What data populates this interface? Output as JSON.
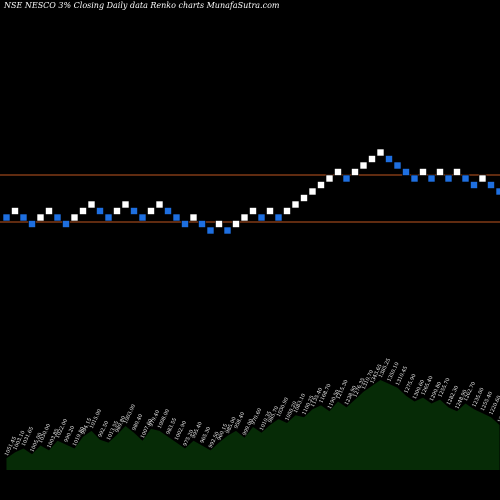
{
  "header": {
    "title": "NSE NESCO 3% Closing Daily data  Renko  charts MunafaSutra.com"
  },
  "colors": {
    "background": "#000000",
    "up_brick": "#ffffff",
    "down_brick": "#1e6fe0",
    "brick_border": "#000000",
    "level_line": "#c0561f",
    "volume_fill": "#062b06"
  },
  "chart_data": {
    "type": "renko",
    "title": "NSE NESCO 3% Closing Daily data  Renko  charts MunafaSutra.com",
    "brick_size_pct": 3,
    "levels": [
      175,
      222
    ],
    "bricks": [
      {
        "dir": "down",
        "level": 0
      },
      {
        "dir": "up",
        "level": 1
      },
      {
        "dir": "down",
        "level": 0
      },
      {
        "dir": "down",
        "level": -1
      },
      {
        "dir": "up",
        "level": 0
      },
      {
        "dir": "up",
        "level": 1
      },
      {
        "dir": "down",
        "level": 0
      },
      {
        "dir": "down",
        "level": -1
      },
      {
        "dir": "up",
        "level": 0
      },
      {
        "dir": "up",
        "level": 1
      },
      {
        "dir": "up",
        "level": 2
      },
      {
        "dir": "down",
        "level": 1
      },
      {
        "dir": "down",
        "level": 0
      },
      {
        "dir": "up",
        "level": 1
      },
      {
        "dir": "up",
        "level": 2
      },
      {
        "dir": "down",
        "level": 1
      },
      {
        "dir": "down",
        "level": 0
      },
      {
        "dir": "up",
        "level": 1
      },
      {
        "dir": "up",
        "level": 2
      },
      {
        "dir": "down",
        "level": 1
      },
      {
        "dir": "down",
        "level": 0
      },
      {
        "dir": "down",
        "level": -1
      },
      {
        "dir": "up",
        "level": 0
      },
      {
        "dir": "down",
        "level": -1
      },
      {
        "dir": "down",
        "level": -2
      },
      {
        "dir": "up",
        "level": -1
      },
      {
        "dir": "down",
        "level": -2
      },
      {
        "dir": "up",
        "level": -1
      },
      {
        "dir": "up",
        "level": 0
      },
      {
        "dir": "up",
        "level": 1
      },
      {
        "dir": "down",
        "level": 0
      },
      {
        "dir": "up",
        "level": 1
      },
      {
        "dir": "down",
        "level": 0
      },
      {
        "dir": "up",
        "level": 1
      },
      {
        "dir": "up",
        "level": 2
      },
      {
        "dir": "up",
        "level": 3
      },
      {
        "dir": "up",
        "level": 4
      },
      {
        "dir": "up",
        "level": 5
      },
      {
        "dir": "up",
        "level": 6
      },
      {
        "dir": "up",
        "level": 7
      },
      {
        "dir": "down",
        "level": 6
      },
      {
        "dir": "up",
        "level": 7
      },
      {
        "dir": "up",
        "level": 8
      },
      {
        "dir": "up",
        "level": 9
      },
      {
        "dir": "up",
        "level": 10
      },
      {
        "dir": "down",
        "level": 9
      },
      {
        "dir": "down",
        "level": 8
      },
      {
        "dir": "down",
        "level": 7
      },
      {
        "dir": "down",
        "level": 6
      },
      {
        "dir": "up",
        "level": 7
      },
      {
        "dir": "down",
        "level": 6
      },
      {
        "dir": "up",
        "level": 7
      },
      {
        "dir": "down",
        "level": 6
      },
      {
        "dir": "up",
        "level": 7
      },
      {
        "dir": "down",
        "level": 6
      },
      {
        "dir": "down",
        "level": 5
      },
      {
        "dir": "up",
        "level": 6
      },
      {
        "dir": "down",
        "level": 5
      },
      {
        "dir": "down",
        "level": 4
      }
    ],
    "volume": {
      "values": [
        12,
        18,
        22,
        16,
        25,
        20,
        30,
        26,
        22,
        34,
        40,
        31,
        28,
        36,
        45,
        38,
        30,
        42,
        40,
        34,
        28,
        22,
        30,
        25,
        20,
        28,
        35,
        40,
        33,
        44,
        38,
        46,
        52,
        48,
        56,
        54,
        62,
        66,
        60,
        70,
        64,
        72,
        80,
        86,
        92,
        88,
        84,
        76,
        70,
        74,
        68,
        72,
        64,
        60,
        68,
        62,
        58,
        54,
        46
      ],
      "labels": [
        "1051.45",
        "1003.10",
        "1031.65",
        "1005.00",
        "1030.00",
        "1003.85",
        "1022.00",
        "990.20",
        "1019.80",
        "994.15",
        "1015.00",
        "992.50",
        "1013.55",
        "989.80",
        "1003.00",
        "980.40",
        "1007.60",
        "979.40",
        "1008.00",
        "983.55",
        "1002.90",
        "975.20",
        "995.40",
        "965.30",
        "992.50",
        "960.15",
        "985.00",
        "958.40",
        "999.00",
        "970.60",
        "1010.35",
        "985.70",
        "1030.90",
        "1050.20",
        "1083.10",
        "1100.25",
        "1135.40",
        "1168.70",
        "1190.50",
        "1215.30",
        "1238.90",
        "1276.35",
        "1310.70",
        "1343.65",
        "1385.25",
        "1350.10",
        "1310.45",
        "1275.90",
        "1300.60",
        "1265.40",
        "1290.80",
        "1255.70",
        "1282.30",
        "1248.90",
        "1262.70",
        "1235.00",
        "1255.40",
        "1220.60",
        "1200.50"
      ]
    },
    "xlabel": "",
    "ylabel": ""
  }
}
